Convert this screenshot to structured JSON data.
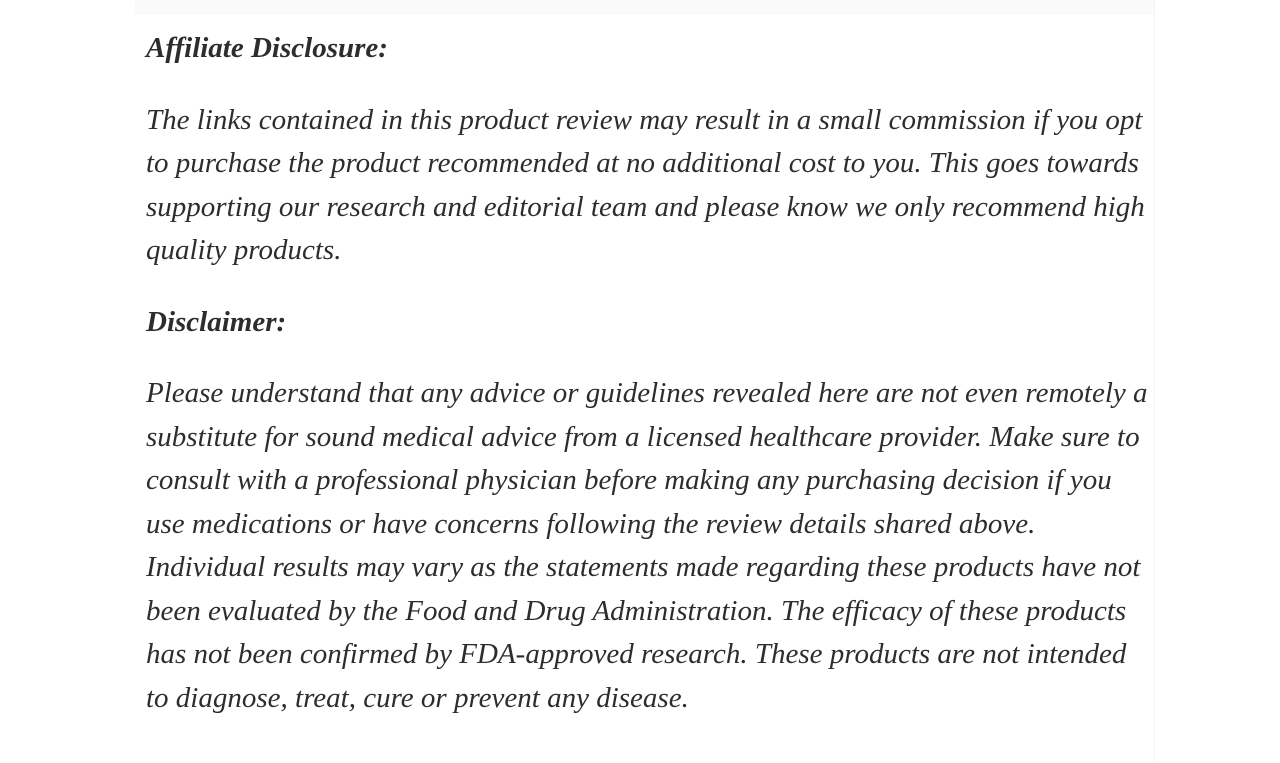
{
  "page": {
    "background_color": "#ffffff",
    "text_color": "#2d2d2d",
    "top_strip_color": "#fafafa",
    "column_border_color": "#f4f4f4"
  },
  "article": {
    "sections": [
      {
        "heading": "Affiliate Disclosure:",
        "body": "The links contained in this product review may result in a small commission if you opt to purchase the product recommended at no additional cost to you. This goes towards supporting our research and editorial team and please know we only recommend high quality products."
      },
      {
        "heading": "Disclaimer:",
        "body": "Please understand that any advice or guidelines revealed here are not even remotely a substitute for sound medical advice from a licensed healthcare provider. Make sure to consult with a professional physician before making any purchasing decision if you use medications or have concerns following the review details shared above. Individual results may vary as the statements made regarding these products have not been evaluated by the Food and Drug Administration. The efficacy of these products has not been confirmed by FDA-approved research. These products are not intended to diagnose, treat, cure or prevent any disease."
      }
    ]
  }
}
